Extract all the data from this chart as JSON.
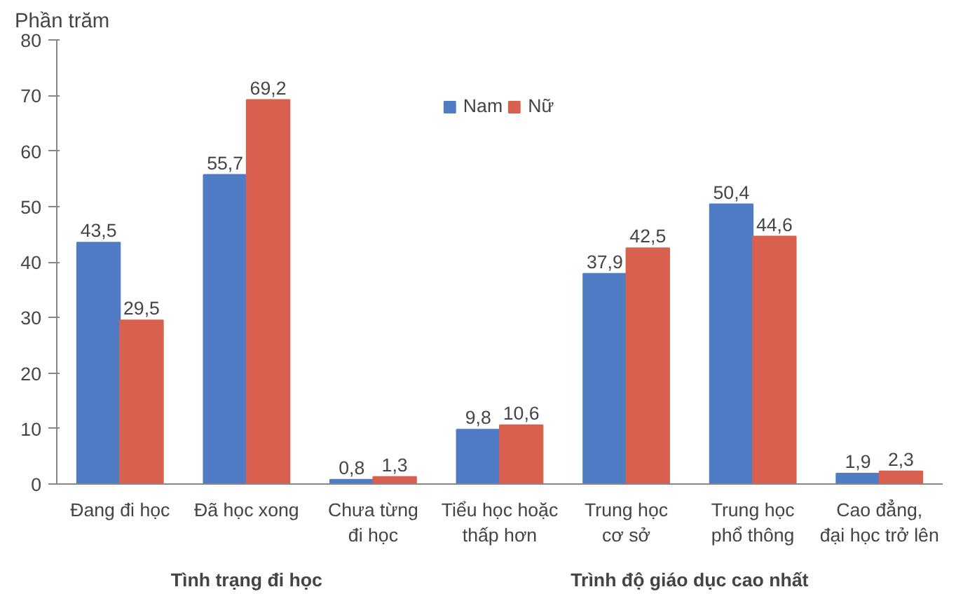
{
  "chart_data": {
    "type": "bar",
    "ylabel": "Phần trăm",
    "categories": [
      "Đang đi học",
      "Đã học xong",
      "Chưa từng\nđi học",
      "Tiểu học hoặc\nthấp hơn",
      "Trung học\ncơ sở",
      "Trung học\nphổ thông",
      "Cao đẳng,\nđại học trở lên"
    ],
    "series": [
      {
        "name": "Nam",
        "color": "#4f7cc4",
        "values": [
          43.5,
          55.7,
          0.8,
          9.8,
          37.9,
          50.4,
          1.9
        ],
        "value_labels": [
          "43,5",
          "55,7",
          "0,8",
          "9,8",
          "37,9",
          "50,4",
          "1,9"
        ]
      },
      {
        "name": "Nữ",
        "color": "#d9604f",
        "values": [
          29.5,
          69.2,
          1.3,
          10.6,
          42.5,
          44.6,
          2.3
        ],
        "value_labels": [
          "29,5",
          "69,2",
          "1,3",
          "10,6",
          "42,5",
          "44,6",
          "2,3"
        ]
      }
    ],
    "ylim": [
      0,
      80
    ],
    "yticks": [
      0,
      10,
      20,
      30,
      40,
      50,
      60,
      70,
      80
    ],
    "legend": "top",
    "grid": false,
    "annotations": [
      "Tình trạng đi học",
      "Trình độ giáo dục cao nhất"
    ]
  }
}
